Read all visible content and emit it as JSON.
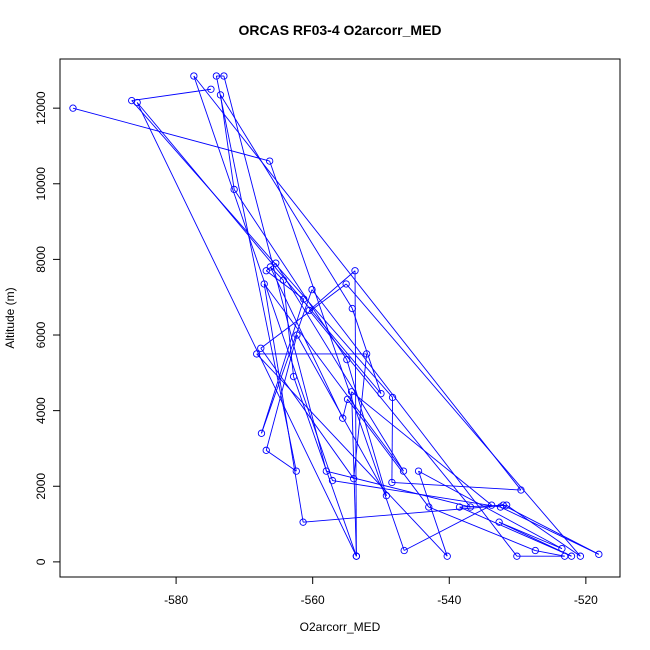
{
  "chart_data": {
    "type": "line",
    "title": "ORCAS RF03-4 O2arcorr_MED",
    "xlabel": "O2arcorr_MED",
    "ylabel": "Altitude (m)",
    "xlim": [
      -597,
      -515
    ],
    "ylim": [
      -400,
      13300
    ],
    "x_ticks": [
      -580,
      -560,
      -540,
      -520
    ],
    "y_ticks": [
      0,
      2000,
      4000,
      6000,
      8000,
      10000,
      12000
    ],
    "x_tick_labels": [
      "-580",
      "-560",
      "-540",
      "-520"
    ],
    "y_tick_labels": [
      "0",
      "2000",
      "4000",
      "6000",
      "8000",
      "10000",
      "12000"
    ],
    "color": "#0000ff",
    "marker": "open-circle",
    "grid": false,
    "x": [
      -595.1,
      -566.3,
      -546.6,
      -533.8,
      -554.3,
      -553.6,
      -585.7,
      -550.0,
      -554.2,
      -573.5,
      -571.5,
      -555.0,
      -549.2,
      -562.3,
      -566.8,
      -562.4,
      -574.1,
      -573.0,
      -558.0,
      -536.9,
      -560.5,
      -553.8,
      -553.6,
      -562.8,
      -564.3,
      -566.2,
      -555.6,
      -554.9,
      -543.0,
      -527.4,
      -523.1,
      -530.1,
      -560.1,
      -567.5,
      -561.3,
      -566.8,
      -565.4,
      -546.7,
      -567.1,
      -561.4,
      -531.6,
      -520.8,
      -555.1,
      -567.6,
      -554.0,
      -552.1,
      -568.2,
      -540.3,
      -544.5,
      -523.5,
      -532.7,
      -522.1,
      -538.5,
      -532.1,
      -518.1,
      -532.5,
      -557.1,
      -577.4,
      -529.5,
      -548.4,
      -548.3,
      -586.5,
      -574.9
    ],
    "y": [
      12000,
      10600,
      300,
      1500,
      4500,
      150,
      12150,
      4450,
      6700,
      12350,
      9850,
      5350,
      1750,
      6000,
      2950,
      2400,
      12850,
      12850,
      2400,
      1450,
      6650,
      7700,
      150,
      4900,
      7450,
      7800,
      3800,
      4300,
      1450,
      300,
      150,
      150,
      7200,
      3400,
      6950,
      7700,
      7900,
      2400,
      7350,
      1050,
      1500,
      150,
      7350,
      5650,
      2200,
      5500,
      5500,
      150,
      2400,
      350,
      1050,
      150,
      1450,
      1500,
      200,
      1450,
      2150,
      12850,
      1900,
      2100,
      4350,
      12200,
      12500
    ]
  }
}
